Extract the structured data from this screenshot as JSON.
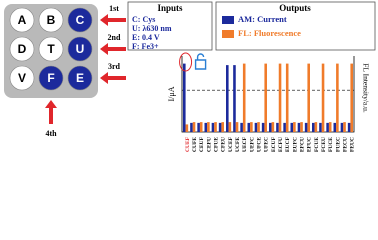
{
  "grid_panel": {
    "cells": [
      [
        "A",
        "B",
        "C"
      ],
      [
        "D",
        "T",
        "U"
      ],
      [
        "V",
        "F",
        "E"
      ]
    ],
    "active": [
      "C",
      "U",
      "F",
      "E"
    ],
    "steps": [
      "1st",
      "2nd",
      "3rd",
      "4th"
    ]
  },
  "inputs": {
    "title": "Inputs",
    "items": [
      "C: Cys",
      "U: λ630 nm",
      "E: 0.4 V",
      "F: Fe3+"
    ]
  },
  "outputs": {
    "title": "Outputs"
  },
  "chart_data": {
    "type": "bar",
    "ylabel": "I/μA",
    "y2label": "FL Intensity/a.u.",
    "categories": [
      "CUEF",
      "CUFE",
      "CEUF",
      "CEFU",
      "CFUE",
      "CFEU",
      "UCEF",
      "UCFE",
      "UECF",
      "UEFC",
      "UFCE",
      "UFEC",
      "ECUF",
      "ECFU",
      "EUCF",
      "EUFC",
      "EFCU",
      "EFUC",
      "FCUE",
      "FCEU",
      "FUCE",
      "FUEC",
      "FECU",
      "FEUC"
    ],
    "series": [
      {
        "name": "AM: Current",
        "color": "#1c2a9c",
        "values": [
          90,
          12,
          12,
          12,
          12,
          12,
          88,
          88,
          12,
          12,
          12,
          12,
          12,
          12,
          12,
          12,
          12,
          12,
          12,
          12,
          12,
          12,
          12,
          12
        ]
      },
      {
        "name": "FL: Fluorescence",
        "color": "#f07b2a",
        "values": [
          10,
          13,
          13,
          13,
          13,
          13,
          13,
          13,
          90,
          13,
          13,
          90,
          13,
          90,
          90,
          13,
          13,
          90,
          13,
          90,
          13,
          90,
          13,
          90
        ]
      }
    ],
    "ylim": [
      0,
      100
    ],
    "threshold": 55,
    "highlight_category": 0,
    "highlight_color": "#e0262b"
  }
}
